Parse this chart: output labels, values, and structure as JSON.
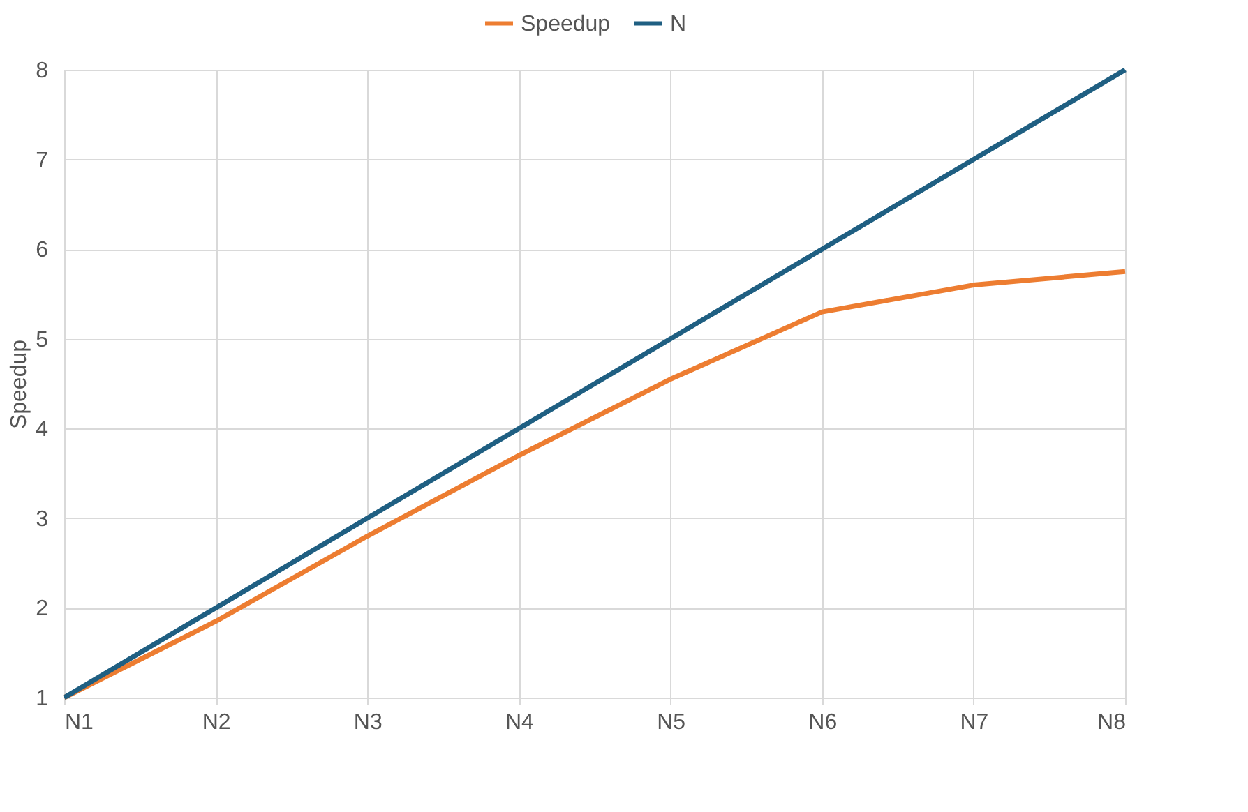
{
  "chart_data": {
    "type": "line",
    "ylabel": "Speedup",
    "categories": [
      "N1",
      "N2",
      "N3",
      "N4",
      "N5",
      "N6",
      "N7",
      "N8"
    ],
    "series": [
      {
        "name": "Speedup",
        "color": "#ed7d31",
        "values": [
          1,
          1.85,
          2.8,
          3.7,
          4.55,
          5.3,
          5.6,
          5.75
        ]
      },
      {
        "name": "N",
        "color": "#1f5f82",
        "values": [
          1,
          2,
          3,
          4,
          5,
          6,
          7,
          8
        ]
      }
    ],
    "ylim": [
      1,
      8
    ],
    "yticks": [
      1,
      2,
      3,
      4,
      5,
      6,
      7,
      8
    ],
    "grid": true,
    "legend": "top",
    "marker": "none",
    "line_style": "solid"
  }
}
